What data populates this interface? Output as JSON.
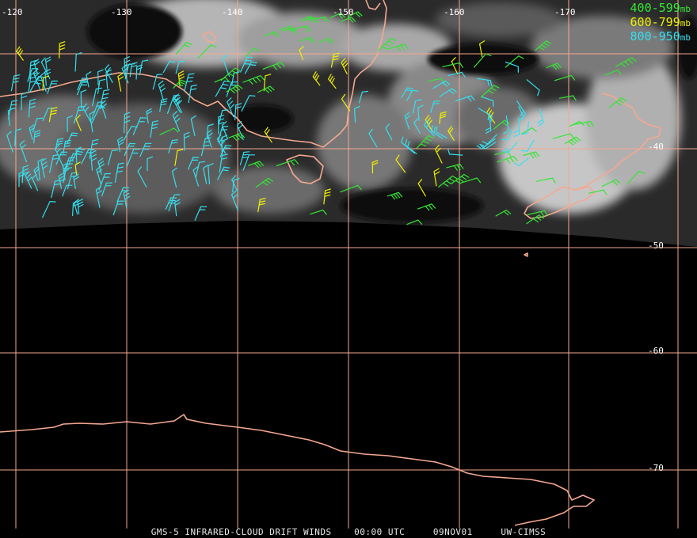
{
  "map": {
    "lon_labels": [
      "-120",
      "-130",
      "-140",
      "-150",
      "-160",
      "-170"
    ],
    "lat_labels": [
      "-40",
      "-50",
      "-60",
      "-70"
    ],
    "projection_hint": "satellite infrared with wind barbs",
    "colors": {
      "grid": "#f5a890",
      "coast": "#f5a890",
      "wind_400_599": "#33e633",
      "wind_600_799": "#f0f000",
      "wind_800_950": "#33e0f0"
    }
  },
  "legend": {
    "items": [
      {
        "label": "400-599",
        "unit": "mb",
        "color": "#33e633"
      },
      {
        "label": "600-799",
        "unit": "mb",
        "color": "#f0f000"
      },
      {
        "label": "800-950",
        "unit": "mb",
        "color": "#33e0f0"
      }
    ]
  },
  "footer": {
    "product": "GMS-5 INFRARED-CLOUD DRIFT WINDS",
    "time": "00:00 UTC",
    "date": "09NOV01",
    "source": "UW-CIMSS"
  }
}
